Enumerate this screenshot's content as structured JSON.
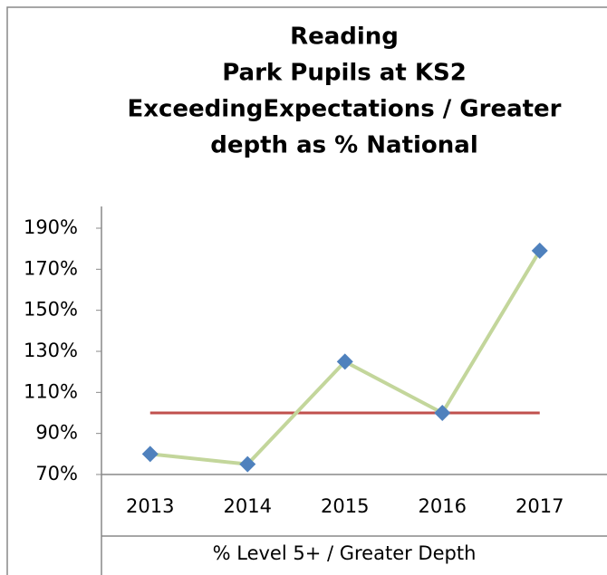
{
  "chart_data": {
    "type": "line",
    "title": [
      "Reading",
      "Park Pupils at KS2",
      "ExceedingExpectations / Greater",
      "depth as % National"
    ],
    "x_label": "% Level 5+ / Greater Depth",
    "categories": [
      "2013",
      "2014",
      "2015",
      "2016",
      "2017"
    ],
    "series": [
      {
        "color": "#c3d69b",
        "marker_color": "#4f81bd",
        "marker": "diamond",
        "values": [
          80,
          75,
          125,
          100,
          179
        ]
      },
      {
        "color": "#c0504d",
        "values": [
          100,
          100,
          100,
          100,
          100
        ]
      }
    ],
    "ylim": [
      70,
      190
    ],
    "yticks": [
      {
        "value": 70,
        "label": "70%"
      },
      {
        "value": 90,
        "label": "90%"
      },
      {
        "value": 110,
        "label": "110%"
      },
      {
        "value": 130,
        "label": "130%"
      },
      {
        "value": 150,
        "label": "150%"
      },
      {
        "value": 170,
        "label": "170%"
      },
      {
        "value": 190,
        "label": "190%"
      }
    ],
    "grid": false
  }
}
